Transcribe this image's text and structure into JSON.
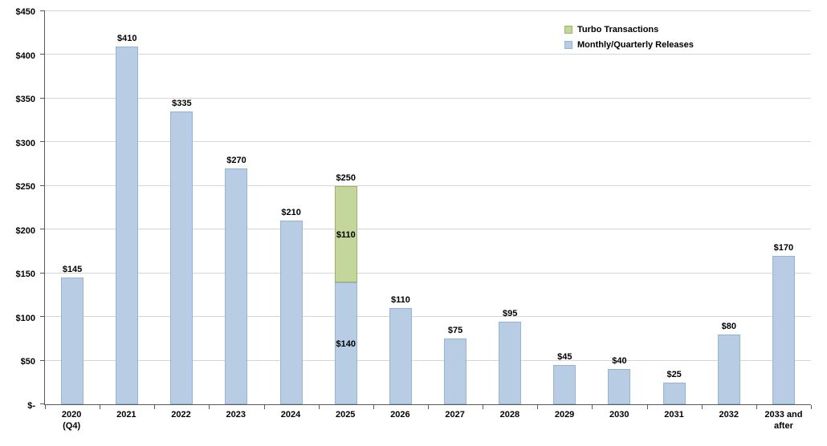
{
  "chart_data": {
    "type": "bar",
    "stacked": true,
    "title": "",
    "xlabel": "",
    "ylabel": "",
    "grid": true,
    "legend_position": "top-right-inside",
    "categories": [
      "2020\n(Q4)",
      "2021",
      "2022",
      "2023",
      "2024",
      "2025",
      "2026",
      "2027",
      "2028",
      "2029",
      "2030",
      "2031",
      "2032",
      "2033 and\nafter"
    ],
    "series": [
      {
        "name": "Monthly/Quarterly Releases",
        "color": "#b8cce4",
        "border_color": "#95b3d7",
        "values": [
          145,
          410,
          335,
          270,
          210,
          140,
          110,
          75,
          95,
          45,
          40,
          25,
          80,
          170
        ]
      },
      {
        "name": "Turbo Transactions",
        "color": "#c3d69b",
        "border_color": "#9cb564",
        "values": [
          0,
          0,
          0,
          0,
          0,
          110,
          0,
          0,
          0,
          0,
          0,
          0,
          0,
          0
        ]
      }
    ],
    "bar_labels": [
      "$145",
      "$410",
      "$335",
      "$270",
      "$210",
      "$250",
      "$110",
      "$75",
      "$95",
      "$45",
      "$40",
      "$25",
      "$80",
      "$170"
    ],
    "segment_labels": [
      {
        "category_index": 5,
        "series_index": 0,
        "text": "$140"
      },
      {
        "category_index": 5,
        "series_index": 1,
        "text": "$110"
      }
    ],
    "y_axis": {
      "min": 0,
      "max": 450,
      "step": 50,
      "tick_labels": [
        "$-",
        "$50",
        "$100",
        "$150",
        "$200",
        "$250",
        "$300",
        "$350",
        "$400",
        "$450"
      ]
    },
    "legend": [
      {
        "label": "Turbo Transactions",
        "color": "#c3d69b",
        "border_color": "#9cb564"
      },
      {
        "label": "Monthly/Quarterly Releases",
        "color": "#b8cce4",
        "border_color": "#95b3d7"
      }
    ]
  }
}
